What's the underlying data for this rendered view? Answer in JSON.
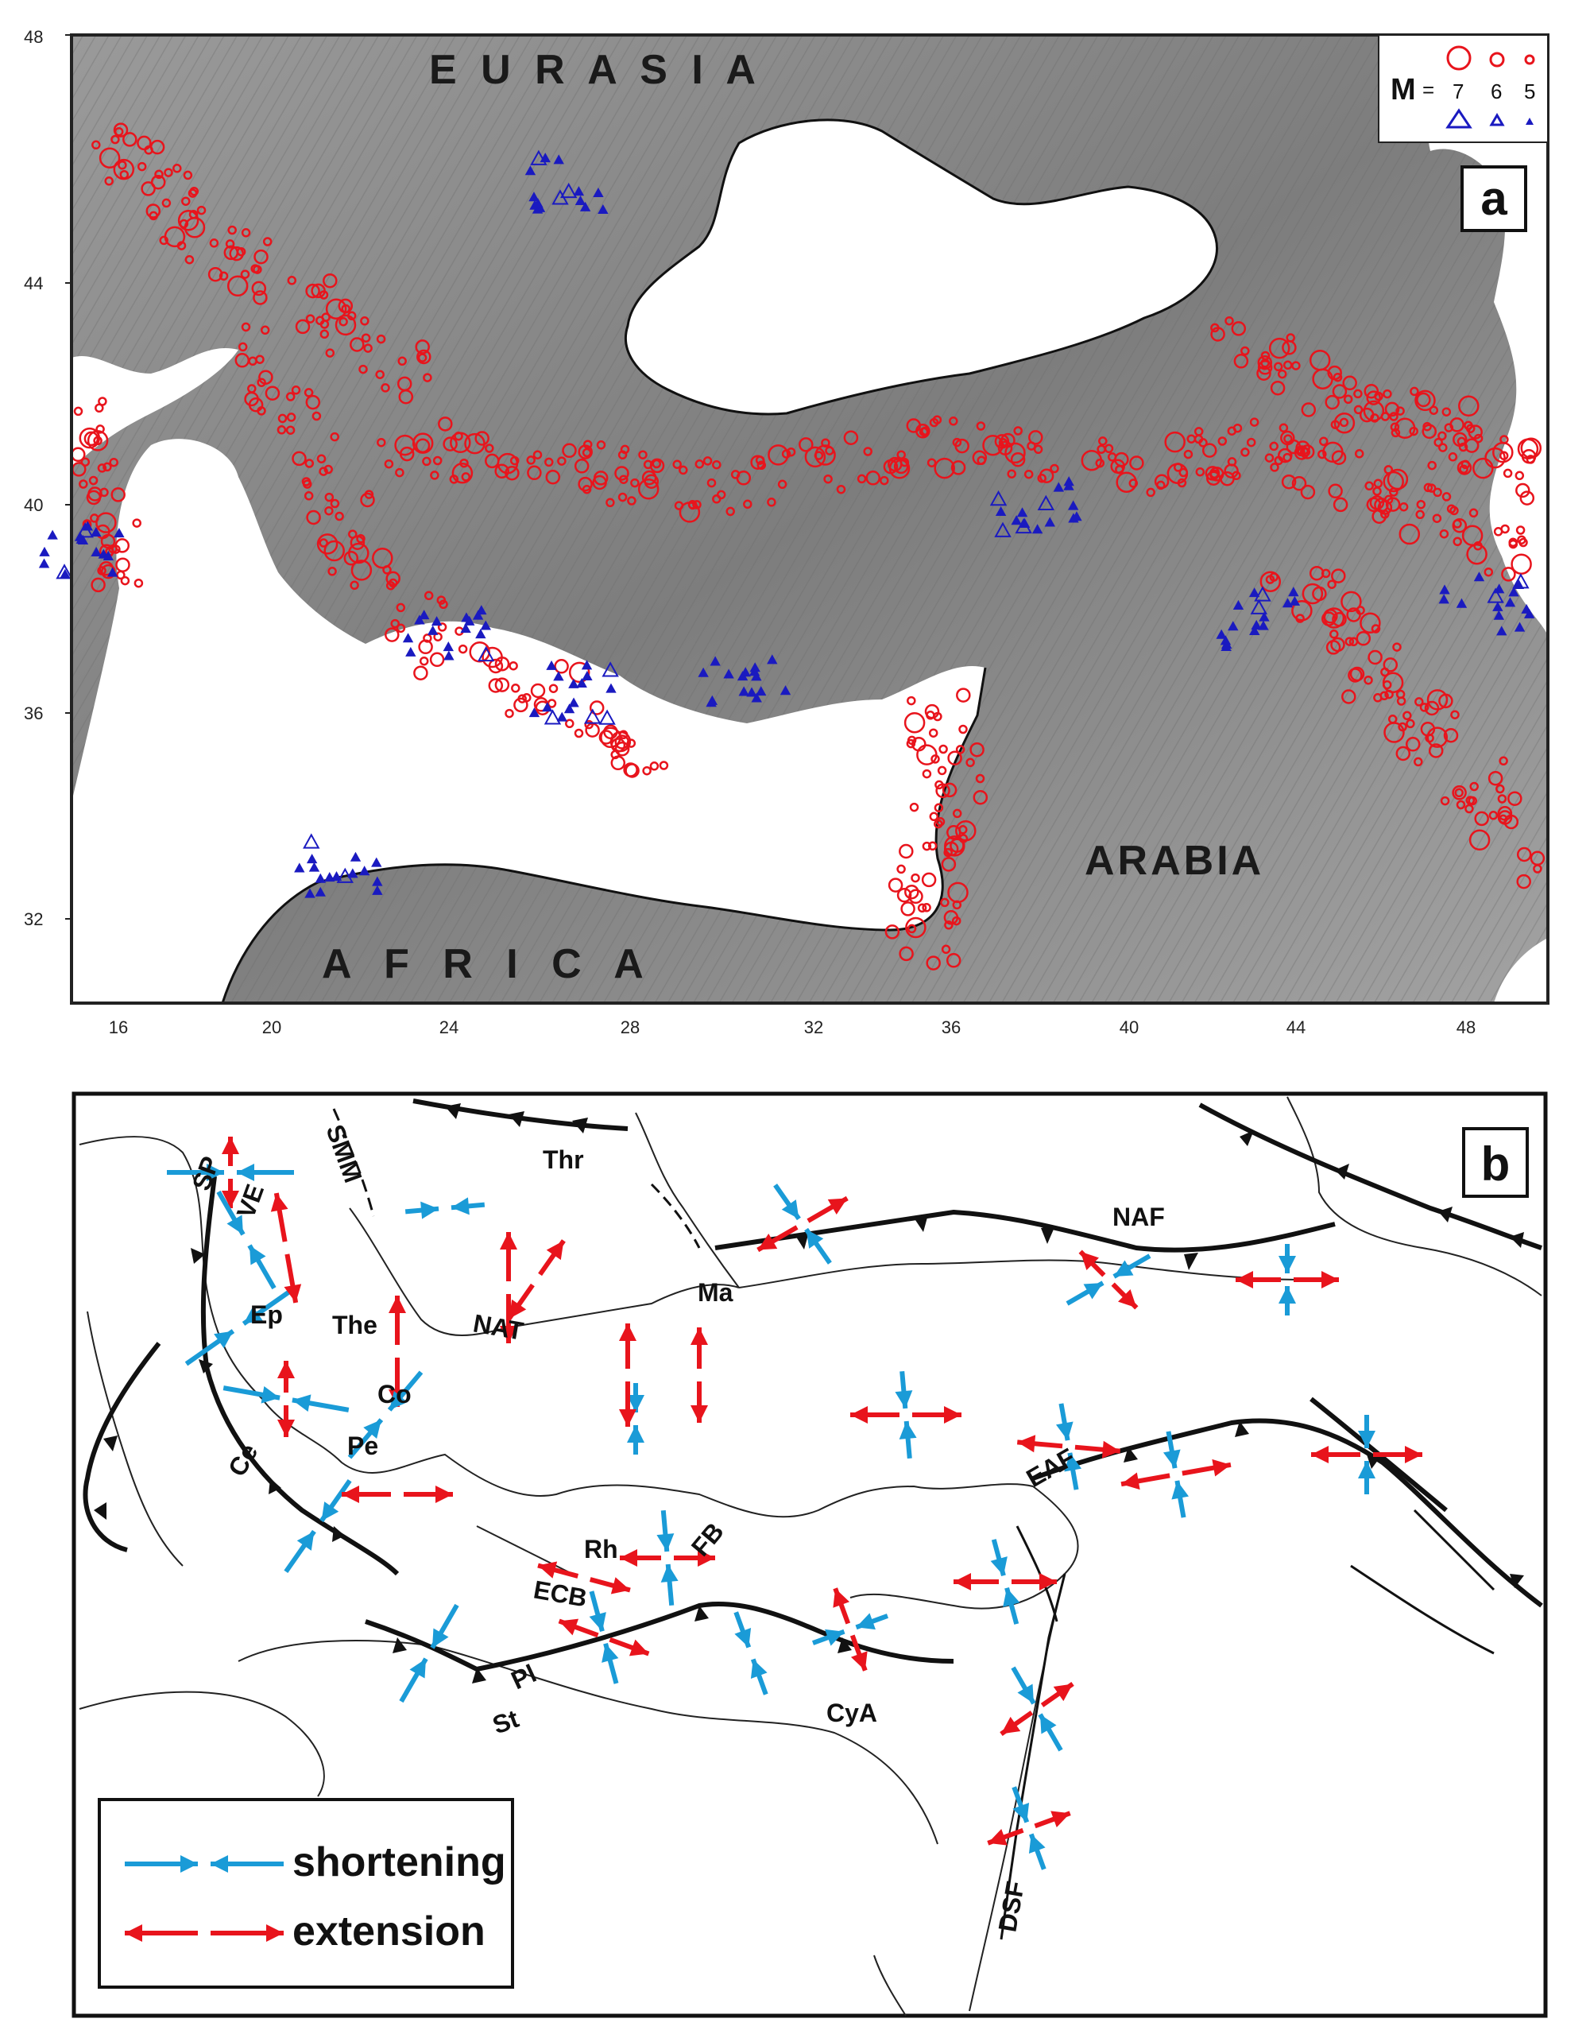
{
  "panel_a": {
    "letter": "a",
    "regions": {
      "eurasia": "E U R A S I A",
      "africa": "A F R I C A",
      "arabia": "ARABIA"
    },
    "y_ticks": [
      "48",
      "44",
      "40",
      "36",
      "32"
    ],
    "x_ticks": [
      "16",
      "20",
      "24",
      "28",
      "32",
      "36",
      "40",
      "44",
      "48"
    ],
    "legend": {
      "m_label": "M",
      "eq": "=",
      "mags": [
        "7",
        "6",
        "5"
      ]
    },
    "colors": {
      "land": "#8f8f8f",
      "sea": "#ffffff",
      "circle": "#e8141c",
      "triangle": "#1a1ac0"
    }
  },
  "panel_b": {
    "letter": "b",
    "labels": [
      "SP",
      "VE",
      "SMM",
      "Thr",
      "NAF",
      "Ma",
      "The",
      "Ep",
      "NAT",
      "Co",
      "Ce",
      "Pe",
      "ECB",
      "Rh",
      "FB",
      "Pl",
      "St",
      "CyA",
      "EAF",
      "DSF"
    ],
    "legend": {
      "shortening": "shortening",
      "extension": "extension"
    },
    "colors": {
      "shortening": "#1a9bd7",
      "extension": "#e8141c"
    }
  }
}
